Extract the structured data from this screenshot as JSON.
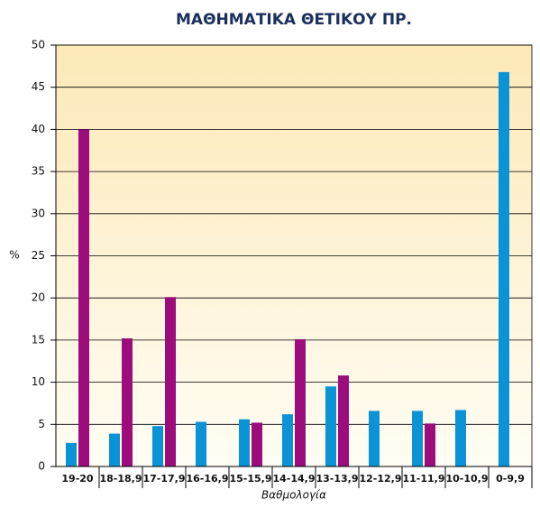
{
  "chart_data": {
    "type": "bar",
    "title": "ΜΑΘΗΜΑΤΙΚΑ ΘΕΤΙΚΟΥ ΠΡ.",
    "x_label": "Βαθμολογία",
    "y_label": "%",
    "categories": [
      "19-20",
      "18-18,9",
      "17-17,9",
      "16-16,9",
      "15-15,9",
      "14-14,9",
      "13-13,9",
      "12-12,9",
      "11-11,9",
      "10-10,9",
      "0-9,9"
    ],
    "series": [
      {
        "color": "#0a93d6",
        "values": [
          2.8,
          3.9,
          4.8,
          5.3,
          5.6,
          6.2,
          9.5,
          6.6,
          6.6,
          6.7,
          46.8
        ]
      },
      {
        "color": "#9c0c7c",
        "values": [
          40,
          15.2,
          20.1,
          0,
          5.2,
          15.1,
          10.8,
          0,
          5.1,
          0,
          0
        ]
      }
    ],
    "ylim": [
      0,
      50
    ],
    "yticks": [
      0,
      5,
      10,
      15,
      20,
      25,
      30,
      35,
      40,
      45,
      50
    ],
    "grid": true
  }
}
